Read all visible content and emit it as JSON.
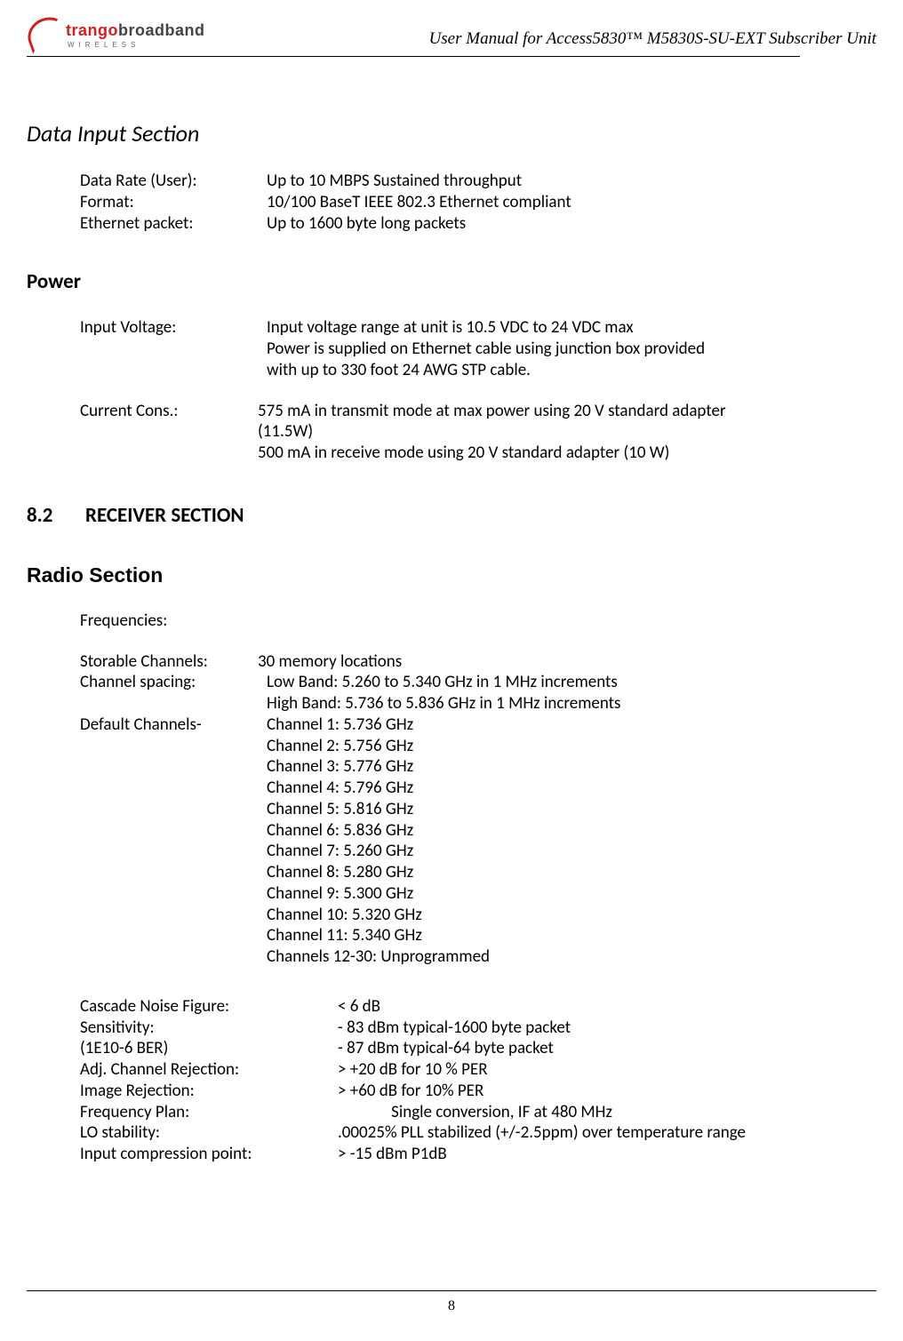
{
  "header": {
    "logo_main_1": "trango",
    "logo_main_2": "broadband",
    "logo_sub": "WIRELESS",
    "doc_title": "User Manual for Access5830™ M5830S-SU-EXT Subscriber Unit"
  },
  "sections": {
    "data_input": {
      "title": "Data Input Section",
      "rows": [
        {
          "label": "Data Rate (User):",
          "value": "Up to 10 MBPS Sustained throughput"
        },
        {
          "label": "Format:",
          "value": "10/100 BaseT IEEE 802.3 Ethernet compliant"
        },
        {
          "label": "Ethernet packet:",
          "value": "Up to 1600 byte long packets"
        }
      ]
    },
    "power": {
      "title": "Power",
      "input_voltage_label": "Input Voltage:",
      "input_voltage_lines": [
        "Input voltage range at unit is 10.5 VDC to 24 VDC max",
        "Power is supplied on Ethernet cable using junction box provided",
        "with up to 330 foot 24 AWG STP cable."
      ],
      "current_label": "Current Cons.:",
      "current_lines": [
        "575 mA in transmit mode at max power using 20 V standard adapter",
        "(11.5W)",
        "500 mA in receive mode using 20 V standard adapter (10 W)"
      ]
    },
    "receiver": {
      "number": "8.2",
      "title": "RECEIVER SECTION"
    },
    "radio": {
      "title": "Radio Section",
      "freq_label": "Frequencies:",
      "storable_label": "Storable Channels:",
      "storable_value": "30 memory locations",
      "spacing_label": "Channel spacing:",
      "spacing_lines": [
        "Low Band: 5.260 to 5.340 GHz in 1 MHz increments",
        "High Band: 5.736 to 5.836 GHz in 1 MHz increments"
      ],
      "default_label": "Default Channels-",
      "default_lines": [
        "Channel 1: 5.736 GHz",
        "Channel 2: 5.756 GHz",
        "Channel 3: 5.776 GHz",
        "Channel 4: 5.796 GHz",
        "Channel 5: 5.816 GHz",
        "Channel 6: 5.836 GHz",
        "Channel 7: 5.260 GHz",
        "Channel 8: 5.280 GHz",
        "Channel 9: 5.300 GHz",
        "Channel 10: 5.320 GHz",
        "Channel 11: 5.340 GHz",
        "Channels 12-30: Unprogrammed"
      ],
      "specs": [
        {
          "label": "Cascade Noise Figure:",
          "value": "< 6 dB"
        },
        {
          "label": "Sensitivity:",
          "value": "- 83 dBm typical-1600 byte packet"
        },
        {
          "label": "(1E10-6 BER)",
          "value": "- 87 dBm typical-64 byte packet"
        },
        {
          "label": "Adj. Channel Rejection:",
          "value": "> +20 dB for 10 % PER"
        },
        {
          "label": "Image Rejection:",
          "value": "> +60 dB for 10% PER"
        },
        {
          "label": "Frequency Plan:",
          "value": "              Single conversion, IF at 480 MHz"
        },
        {
          "label": "LO stability:",
          "value": ".00025% PLL stabilized (+/-2.5ppm) over temperature range"
        },
        {
          "label": "Input compression point:",
          "value": "> -15 dBm P1dB"
        }
      ]
    }
  },
  "footer": {
    "page_number": "8"
  }
}
